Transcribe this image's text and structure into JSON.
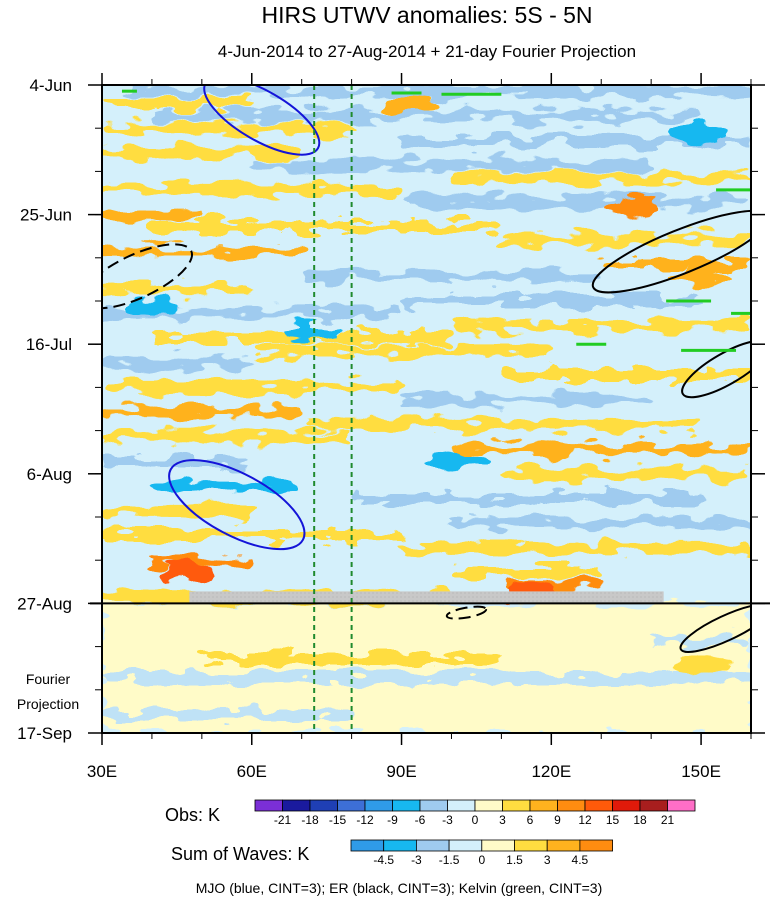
{
  "chart_data": {
    "type": "heatmap",
    "title": "HIRS UTWV anomalies: 5S - 5N",
    "subtitle": "4-Jun-2014 to 27-Aug-2014 + 21-day Fourier Projection",
    "x_axis": {
      "range": [
        30,
        160
      ],
      "ticks": [
        {
          "value": 30,
          "label": "30E"
        },
        {
          "value": 60,
          "label": "60E"
        },
        {
          "value": 90,
          "label": "90E"
        },
        {
          "value": 120,
          "label": "120E"
        },
        {
          "value": 150,
          "label": "150E"
        }
      ]
    },
    "y_axis": {
      "range_days": [
        0,
        105
      ],
      "ticks": [
        {
          "value": 0,
          "label": "4-Jun"
        },
        {
          "value": 21,
          "label": "25-Jun"
        },
        {
          "value": 42,
          "label": "16-Jul"
        },
        {
          "value": 63,
          "label": "6-Aug"
        },
        {
          "value": 84,
          "label": "27-Aug"
        },
        {
          "value": 105,
          "label": "17-Sep"
        }
      ],
      "projection_start_day": 84,
      "projection_label_line1": "Fourier",
      "projection_label_line2": "Projection"
    },
    "reference_lines_lon": [
      72.5,
      80
    ],
    "gray_bar_lon": [
      47.5,
      142.5
    ],
    "obs_colorbar": {
      "title": "Obs: K",
      "labels": [
        "-21",
        "-18",
        "-15",
        "-12",
        "-9",
        "-6",
        "-3",
        "0",
        "3",
        "6",
        "9",
        "12",
        "15",
        "18",
        "21"
      ],
      "colors": [
        "#7b2fd6",
        "#1a1a9e",
        "#1f3fb5",
        "#3d6fd6",
        "#2f9be8",
        "#17b8f0",
        "#9fcbef",
        "#d4f0fb",
        "#fffbc8",
        "#ffdd40",
        "#ffb21e",
        "#ff8c10",
        "#ff5a0a",
        "#e01a0a",
        "#a81e1e",
        "#ff6ec7"
      ]
    },
    "wave_colorbar": {
      "title": "Sum of Waves: K",
      "labels": [
        "-4.5",
        "-3",
        "-1.5",
        "0",
        "1.5",
        "3",
        "4.5"
      ],
      "colors": [
        "#2f9be8",
        "#17b8f0",
        "#9fcbef",
        "#d4f0fb",
        "#fffbc8",
        "#ffdd40",
        "#ffb21e",
        "#ff8c10"
      ]
    },
    "contours_note": "MJO (blue, CINT=3); ER (black, CINT=3); Kelvin (green, CINT=3)",
    "field": {
      "bands": [
        {
          "day": 1,
          "lon_start": 35,
          "lon_end": 160,
          "value": -3
        },
        {
          "day": 3,
          "lon_start": 30,
          "lon_end": 60,
          "value": 3
        },
        {
          "day": 5,
          "lon_start": 40,
          "lon_end": 150,
          "value": -3
        },
        {
          "day": 7,
          "lon_start": 30,
          "lon_end": 80,
          "value": 3
        },
        {
          "day": 9,
          "lon_start": 90,
          "lon_end": 160,
          "value": -3
        },
        {
          "day": 11,
          "lon_start": 30,
          "lon_end": 70,
          "value": 3
        },
        {
          "day": 13,
          "lon_start": 60,
          "lon_end": 140,
          "value": -3
        },
        {
          "day": 15,
          "lon_start": 100,
          "lon_end": 160,
          "value": 3
        },
        {
          "day": 17,
          "lon_start": 30,
          "lon_end": 90,
          "value": 3
        },
        {
          "day": 19,
          "lon_start": 90,
          "lon_end": 160,
          "value": -3
        },
        {
          "day": 21,
          "lon_start": 30,
          "lon_end": 50,
          "value": 6
        },
        {
          "day": 23,
          "lon_start": 40,
          "lon_end": 110,
          "value": 3
        },
        {
          "day": 25,
          "lon_start": 110,
          "lon_end": 160,
          "value": 3
        },
        {
          "day": 27,
          "lon_start": 30,
          "lon_end": 70,
          "value": 6
        },
        {
          "day": 29,
          "lon_start": 130,
          "lon_end": 160,
          "value": 6
        },
        {
          "day": 31,
          "lon_start": 70,
          "lon_end": 130,
          "value": -3
        },
        {
          "day": 33,
          "lon_start": 30,
          "lon_end": 60,
          "value": 3
        },
        {
          "day": 35,
          "lon_start": 90,
          "lon_end": 150,
          "value": -3
        },
        {
          "day": 37,
          "lon_start": 30,
          "lon_end": 90,
          "value": -3
        },
        {
          "day": 39,
          "lon_start": 100,
          "lon_end": 160,
          "value": 3
        },
        {
          "day": 41,
          "lon_start": 40,
          "lon_end": 100,
          "value": 3
        },
        {
          "day": 43,
          "lon_start": 60,
          "lon_end": 120,
          "value": 3
        },
        {
          "day": 45,
          "lon_start": 30,
          "lon_end": 60,
          "value": -3
        },
        {
          "day": 47,
          "lon_start": 110,
          "lon_end": 160,
          "value": 3
        },
        {
          "day": 49,
          "lon_start": 30,
          "lon_end": 90,
          "value": 3
        },
        {
          "day": 51,
          "lon_start": 90,
          "lon_end": 140,
          "value": -3
        },
        {
          "day": 53,
          "lon_start": 30,
          "lon_end": 70,
          "value": 6
        },
        {
          "day": 55,
          "lon_start": 70,
          "lon_end": 150,
          "value": 3
        },
        {
          "day": 57,
          "lon_start": 30,
          "lon_end": 80,
          "value": 3
        },
        {
          "day": 59,
          "lon_start": 100,
          "lon_end": 160,
          "value": 6
        },
        {
          "day": 61,
          "lon_start": 30,
          "lon_end": 60,
          "value": -3
        },
        {
          "day": 63,
          "lon_start": 110,
          "lon_end": 160,
          "value": 3
        },
        {
          "day": 65,
          "lon_start": 40,
          "lon_end": 70,
          "value": -6
        },
        {
          "day": 67,
          "lon_start": 80,
          "lon_end": 150,
          "value": -3
        },
        {
          "day": 69,
          "lon_start": 30,
          "lon_end": 60,
          "value": 3
        },
        {
          "day": 71,
          "lon_start": 100,
          "lon_end": 160,
          "value": -3
        },
        {
          "day": 73,
          "lon_start": 30,
          "lon_end": 90,
          "value": 3
        },
        {
          "day": 75,
          "lon_start": 90,
          "lon_end": 160,
          "value": 3
        },
        {
          "day": 77,
          "lon_start": 40,
          "lon_end": 60,
          "value": 9
        },
        {
          "day": 79,
          "lon_start": 100,
          "lon_end": 130,
          "value": 3
        },
        {
          "day": 81,
          "lon_start": 110,
          "lon_end": 130,
          "value": 9
        },
        {
          "day": 83,
          "lon_start": 30,
          "lon_end": 100,
          "value": 3
        },
        {
          "day": 86,
          "lon_start": 30,
          "lon_end": 90,
          "value": 1.5
        },
        {
          "day": 88,
          "lon_start": 110,
          "lon_end": 140,
          "value": 1.5
        },
        {
          "day": 90,
          "lon_start": 140,
          "lon_end": 160,
          "value": -1.5
        },
        {
          "day": 93,
          "lon_start": 50,
          "lon_end": 110,
          "value": 3
        },
        {
          "day": 96,
          "lon_start": 30,
          "lon_end": 160,
          "value": -1.5
        },
        {
          "day": 99,
          "lon_start": 70,
          "lon_end": 140,
          "value": 1.5
        },
        {
          "day": 102,
          "lon_start": 30,
          "lon_end": 80,
          "value": -1.5
        }
      ],
      "blobs": [
        {
          "lon": 40,
          "day": 36,
          "value": -6
        },
        {
          "lon": 72,
          "day": 40,
          "value": -6
        },
        {
          "lon": 101,
          "day": 61,
          "value": -6
        },
        {
          "lon": 92,
          "day": 3,
          "value": 6
        },
        {
          "lon": 150,
          "day": 8,
          "value": -6
        },
        {
          "lon": 136,
          "day": 20,
          "value": 9
        },
        {
          "lon": 150,
          "day": 31,
          "value": 6
        },
        {
          "lon": 118,
          "day": 59,
          "value": 6
        },
        {
          "lon": 47,
          "day": 79,
          "value": 12
        },
        {
          "lon": 116,
          "day": 82,
          "value": 12
        },
        {
          "lon": 150,
          "day": 94,
          "value": 3
        }
      ]
    },
    "mjo_contours": [
      {
        "lon": 62,
        "day": 5,
        "rx_deg": 13,
        "ry_days": 4,
        "rot_deg": 30
      },
      {
        "lon": 57,
        "day": 68,
        "rx_deg": 15,
        "ry_days": 5,
        "rot_deg": 28
      }
    ],
    "er_contours": [
      {
        "lon": 146,
        "day": 27,
        "rx_deg": 19,
        "ry_days": 3.5,
        "rot_deg": -22,
        "dashed": false
      },
      {
        "lon": 155,
        "day": 46,
        "rx_deg": 10,
        "ry_days": 2.5,
        "rot_deg": -30,
        "dashed": false
      },
      {
        "lon": 155,
        "day": 88,
        "rx_deg": 10,
        "ry_days": 2,
        "rot_deg": -25,
        "dashed": false
      },
      {
        "lon": 37,
        "day": 31,
        "rx_deg": 12,
        "ry_days": 3.5,
        "rot_deg": -25,
        "dashed": true
      },
      {
        "lon": 103,
        "day": 85.5,
        "rx_deg": 4,
        "ry_days": 0.8,
        "rot_deg": -10,
        "dashed": true
      }
    ],
    "kelvin_contours": [
      {
        "lon": 34,
        "day": 1,
        "lon2": 37
      },
      {
        "lon": 98,
        "day": 1.5,
        "lon2": 110
      },
      {
        "lon": 88,
        "day": 1.3,
        "lon2": 94
      },
      {
        "lon": 153,
        "day": 17,
        "lon2": 160
      },
      {
        "lon": 143,
        "day": 35,
        "lon2": 152
      },
      {
        "lon": 146,
        "day": 43,
        "lon2": 157
      },
      {
        "lon": 156,
        "day": 37,
        "lon2": 160
      },
      {
        "lon": 125,
        "day": 42,
        "lon2": 131
      }
    ]
  }
}
